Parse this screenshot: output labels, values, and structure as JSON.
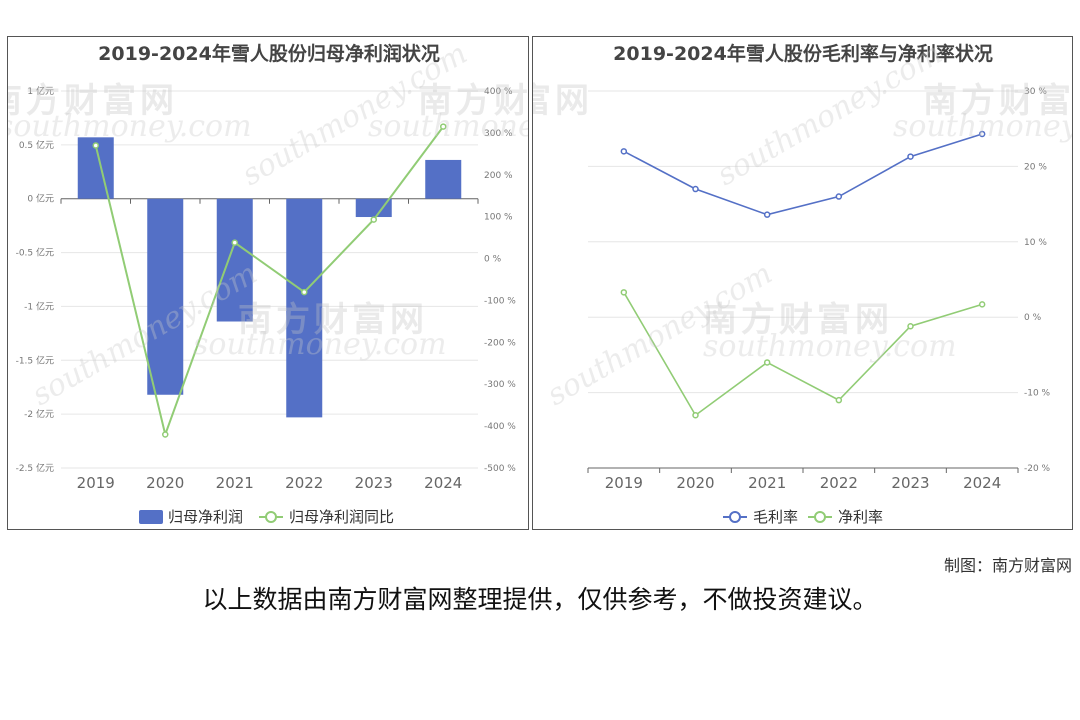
{
  "chart_data": [
    {
      "type": "bar",
      "title": "2019-2024年雪人股份归母净利润状况",
      "categories": [
        "2019",
        "2020",
        "2021",
        "2022",
        "2023",
        "2024"
      ],
      "series": [
        {
          "name": "归母净利润",
          "type": "bar",
          "axis": "left",
          "values": [
            0.57,
            -1.82,
            -1.14,
            -2.03,
            -0.17,
            0.36
          ],
          "color": "#5470c6"
        },
        {
          "name": "归母净利润同比",
          "type": "line",
          "axis": "right",
          "values": [
            270,
            -420,
            38,
            -80,
            93,
            315
          ],
          "color": "#91cc75"
        }
      ],
      "y_left": {
        "ylim": [
          -2.5,
          1
        ],
        "ticks": [
          "1 亿元",
          "0.5 亿元",
          "0 亿元",
          "-0.5 亿元",
          "-1 亿元",
          "-1.5 亿元",
          "-2 亿元",
          "-2.5 亿元"
        ]
      },
      "y_right": {
        "ylim": [
          -500,
          400
        ],
        "ticks": [
          "400 %",
          "300 %",
          "200 %",
          "100 %",
          "0 %",
          "-100 %",
          "-200 %",
          "-300 %",
          "-400 %",
          "-500 %"
        ]
      },
      "grid": true,
      "legend": "bottom"
    },
    {
      "type": "line",
      "title": "2019-2024年雪人股份毛利率与净利率状况",
      "categories": [
        "2019",
        "2020",
        "2021",
        "2022",
        "2023",
        "2024"
      ],
      "series": [
        {
          "name": "毛利率",
          "values": [
            22,
            17,
            13.6,
            16,
            21.3,
            24.3
          ],
          "color": "#5470c6"
        },
        {
          "name": "净利率",
          "values": [
            3.3,
            -13,
            -6,
            -11,
            -1.2,
            1.7
          ],
          "color": "#91cc75"
        }
      ],
      "y_right": {
        "ylim": [
          -20,
          30
        ],
        "ticks": [
          "30 %",
          "20 %",
          "10 %",
          "0 %",
          "-10 %",
          "-20 %"
        ]
      },
      "grid": true,
      "legend": "bottom"
    }
  ],
  "watermark": {
    "text_cn": "南方财富网",
    "text_en": "southmoney.com"
  },
  "footer": {
    "credit": "制图：南方财富网",
    "disclaimer": "以上数据由南方财富网整理提供，仅供参考，不做投资建议。"
  }
}
